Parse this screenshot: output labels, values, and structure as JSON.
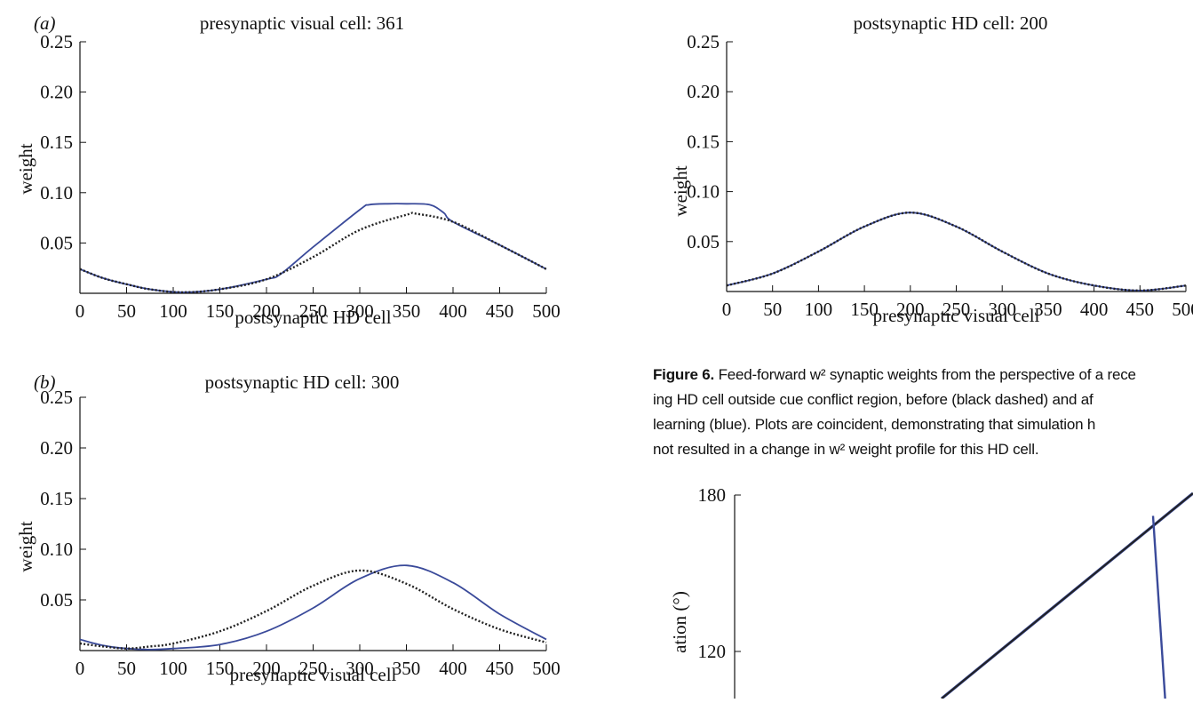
{
  "panels": [
    {
      "id": "a",
      "label": "(a)",
      "title": "presynaptic visual cell: 361",
      "xlabel": "postsynaptic HD cell",
      "ylabel": "weight",
      "xticks": [
        "0",
        "50",
        "100",
        "150",
        "200",
        "250",
        "300",
        "350",
        "400",
        "450",
        "500"
      ],
      "yticks": [
        "0.05",
        "0.10",
        "0.15",
        "0.20",
        "0.25"
      ]
    },
    {
      "id": "b",
      "label": "(b)",
      "title": "postsynaptic HD cell: 300",
      "xlabel": "presynaptic visual cell",
      "ylabel": "weight",
      "xticks": [
        "0",
        "50",
        "100",
        "150",
        "200",
        "250",
        "300",
        "350",
        "400",
        "450",
        "500"
      ],
      "yticks": [
        "0.05",
        "0.10",
        "0.15",
        "0.20",
        "0.25"
      ]
    },
    {
      "id": "c",
      "label": "",
      "title": "postsynaptic HD cell: 200",
      "xlabel": "presynaptic visual cell",
      "ylabel": "weight",
      "xticks": [
        "0",
        "50",
        "100",
        "150",
        "200",
        "250",
        "300",
        "350",
        "400",
        "450",
        "500"
      ],
      "yticks": [
        "0.05",
        "0.10",
        "0.15",
        "0.20",
        "0.25"
      ]
    },
    {
      "id": "d",
      "label": "",
      "title": "",
      "xlabel": "",
      "ylabel": "ation (°)",
      "xticks": [],
      "yticks": [
        "120",
        "180"
      ]
    }
  ],
  "caption": {
    "label": "Figure 6.",
    "lines": [
      "Feed-forward w² synaptic weights from the perspective of a rece",
      "ing HD cell outside cue conflict region, before (black dashed) and af",
      "learning (blue). Plots are coincident, demonstrating that simulation h",
      "not resulted in a change in w² weight profile for this HD cell."
    ]
  },
  "colors": {
    "before": "#222222",
    "after": "#3a4a9a",
    "axis": "#111111"
  },
  "chart_data": [
    {
      "type": "line",
      "title": "presynaptic visual cell: 361",
      "xlabel": "postsynaptic HD cell",
      "ylabel": "weight",
      "xlim": [
        0,
        500
      ],
      "ylim": [
        0,
        0.25
      ],
      "series": [
        {
          "style": "dashed",
          "color": "#222222",
          "x": [
            0,
            25,
            50,
            75,
            110,
            150,
            200,
            250,
            300,
            350,
            361,
            400,
            450,
            500
          ],
          "y": [
            0.024,
            0.015,
            0.009,
            0.004,
            0.001,
            0.004,
            0.014,
            0.036,
            0.063,
            0.078,
            0.079,
            0.071,
            0.048,
            0.024
          ]
        },
        {
          "style": "solid",
          "color": "#3a4a9a",
          "x": [
            0,
            25,
            50,
            75,
            110,
            150,
            200,
            215,
            250,
            300,
            310,
            330,
            350,
            375,
            390,
            400,
            450,
            500
          ],
          "y": [
            0.024,
            0.015,
            0.009,
            0.004,
            0.001,
            0.004,
            0.014,
            0.019,
            0.046,
            0.083,
            0.088,
            0.089,
            0.089,
            0.088,
            0.08,
            0.071,
            0.048,
            0.024
          ]
        }
      ]
    },
    {
      "type": "line",
      "title": "postsynaptic HD cell: 300",
      "xlabel": "presynaptic visual cell",
      "ylabel": "weight",
      "xlim": [
        0,
        500
      ],
      "ylim": [
        0,
        0.25
      ],
      "series": [
        {
          "style": "dashed",
          "color": "#222222",
          "x": [
            0,
            25,
            50,
            75,
            100,
            150,
            200,
            250,
            300,
            350,
            400,
            450,
            500
          ],
          "y": [
            0.007,
            0.004,
            0.002,
            0.004,
            0.007,
            0.019,
            0.039,
            0.064,
            0.079,
            0.066,
            0.041,
            0.021,
            0.008
          ]
        },
        {
          "style": "solid",
          "color": "#3a4a9a",
          "x": [
            0,
            25,
            50,
            75,
            100,
            150,
            200,
            250,
            300,
            350,
            400,
            450,
            500
          ],
          "y": [
            0.011,
            0.005,
            0.002,
            0.001,
            0.002,
            0.006,
            0.019,
            0.042,
            0.071,
            0.084,
            0.067,
            0.036,
            0.011
          ]
        }
      ]
    },
    {
      "type": "line",
      "title": "postsynaptic HD cell: 200",
      "xlabel": "presynaptic visual cell",
      "ylabel": "weight",
      "xlim": [
        0,
        500
      ],
      "ylim": [
        0,
        0.25
      ],
      "series": [
        {
          "style": "dashed",
          "color": "#222222",
          "x": [
            0,
            50,
            100,
            150,
            200,
            250,
            300,
            350,
            400,
            450,
            500
          ],
          "y": [
            0.006,
            0.018,
            0.04,
            0.065,
            0.079,
            0.065,
            0.04,
            0.018,
            0.006,
            0.001,
            0.006
          ]
        },
        {
          "style": "solid",
          "color": "#3a4a9a",
          "x": [
            0,
            50,
            100,
            150,
            200,
            250,
            300,
            350,
            400,
            450,
            500
          ],
          "y": [
            0.006,
            0.018,
            0.04,
            0.065,
            0.079,
            0.065,
            0.04,
            0.018,
            0.006,
            0.001,
            0.006
          ]
        }
      ]
    },
    {
      "type": "line",
      "title": "",
      "xlabel": "",
      "ylabel": "ation (°)",
      "ylim": [
        80,
        180
      ],
      "yticks": [
        120,
        180
      ],
      "series": [
        {
          "style": "solid",
          "color": "#222222",
          "y_end": 180
        },
        {
          "style": "solid",
          "color": "#3a4a9a",
          "y_peak": 172,
          "y_drop_to": 100
        }
      ]
    }
  ]
}
